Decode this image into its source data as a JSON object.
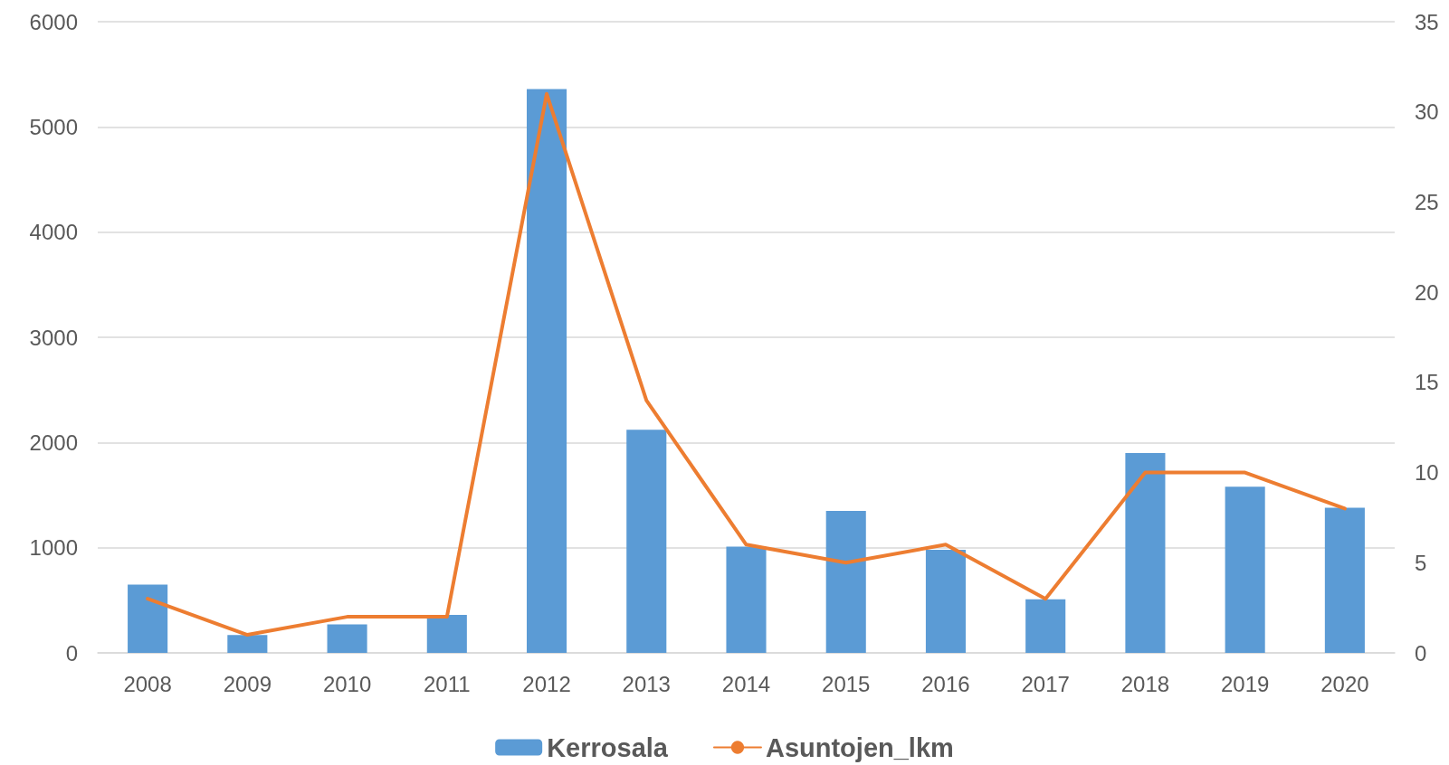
{
  "chart_data": {
    "type": "bar",
    "categories": [
      "2008",
      "2009",
      "2010",
      "2011",
      "2012",
      "2013",
      "2014",
      "2015",
      "2016",
      "2017",
      "2018",
      "2019",
      "2020"
    ],
    "series": [
      {
        "name": "Kerrosala",
        "color": "#5b9bd5",
        "values": [
          650,
          170,
          270,
          360,
          5360,
          2120,
          1010,
          1350,
          980,
          510,
          1900,
          1580,
          1380
        ]
      },
      {
        "name": "Asuntojen_lkm",
        "type": "line",
        "axis": "y2",
        "color": "#ed7d31",
        "values": [
          3,
          1,
          2,
          2,
          31,
          14,
          6,
          5,
          6,
          3,
          10,
          10,
          8
        ]
      }
    ],
    "ylim": [
      0,
      6000
    ],
    "yticks": [
      0,
      1000,
      2000,
      3000,
      4000,
      5000,
      6000
    ],
    "y2lim": [
      0,
      35
    ],
    "y2ticks": [
      0,
      5,
      10,
      15,
      20,
      25,
      30,
      35
    ],
    "grid": "y",
    "legend": "bottom",
    "marker": "none",
    "line_style": "solid"
  }
}
